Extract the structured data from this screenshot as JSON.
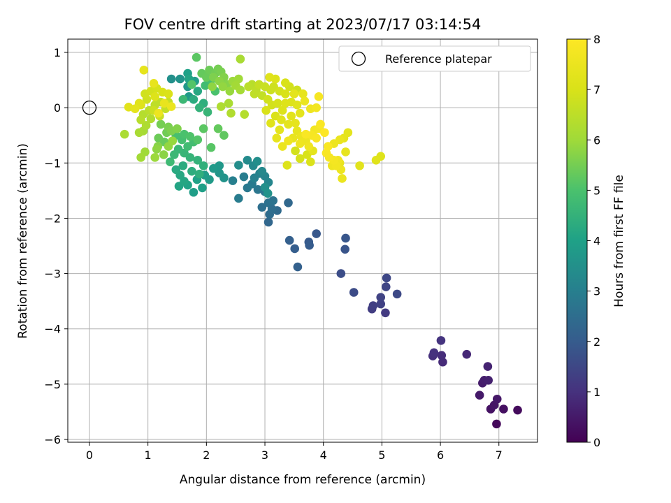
{
  "chart_data": {
    "type": "scatter",
    "title": "FOV centre drift starting at 2023/07/17 03:14:54",
    "xlabel": "Angular distance from reference (arcmin)",
    "ylabel": "Rotation from reference (arcmin)",
    "xlim": [
      -0.37,
      7.66
    ],
    "ylim": [
      -6.05,
      1.24
    ],
    "xticks": [
      0,
      1,
      2,
      3,
      4,
      5,
      6,
      7
    ],
    "yticks": [
      1,
      0,
      -1,
      -2,
      -3,
      -4,
      -5,
      -6
    ],
    "grid": true,
    "legend": {
      "placement": "top-right",
      "entries": [
        "Reference platepar"
      ]
    },
    "reference_point": {
      "x": 0,
      "y": 0,
      "label": "Reference platepar"
    },
    "colorbar": {
      "label": "Hours from first FF file",
      "range": [
        0,
        8
      ],
      "ticks": [
        0,
        1,
        2,
        3,
        4,
        5,
        6,
        7,
        8
      ],
      "colormap": "viridis"
    },
    "points": [
      [
        6.96,
        -5.72,
        0.15
      ],
      [
        7.32,
        -5.47,
        0.2
      ],
      [
        7.08,
        -5.45,
        0.3
      ],
      [
        6.86,
        -5.45,
        0.35
      ],
      [
        6.92,
        -5.38,
        0.4
      ],
      [
        6.97,
        -5.27,
        0.45
      ],
      [
        6.67,
        -5.2,
        0.5
      ],
      [
        6.72,
        -4.98,
        0.55
      ],
      [
        6.75,
        -4.93,
        0.6
      ],
      [
        6.82,
        -4.93,
        0.65
      ],
      [
        6.81,
        -4.68,
        0.7
      ],
      [
        6.45,
        -4.46,
        0.8
      ],
      [
        6.04,
        -4.6,
        0.85
      ],
      [
        6.02,
        -4.48,
        0.9
      ],
      [
        5.87,
        -4.49,
        0.95
      ],
      [
        5.89,
        -4.43,
        1.0
      ],
      [
        6.01,
        -4.21,
        1.05
      ],
      [
        5.06,
        -3.71,
        1.2
      ],
      [
        4.83,
        -3.64,
        1.25
      ],
      [
        4.85,
        -3.58,
        1.3
      ],
      [
        4.98,
        -3.55,
        1.35
      ],
      [
        4.98,
        -3.43,
        1.4
      ],
      [
        5.07,
        -3.24,
        1.45
      ],
      [
        5.08,
        -3.08,
        1.5
      ],
      [
        5.26,
        -3.37,
        1.55
      ],
      [
        4.52,
        -3.34,
        1.6
      ],
      [
        4.3,
        -3.0,
        1.65
      ],
      [
        4.37,
        -2.56,
        1.8
      ],
      [
        4.38,
        -2.36,
        1.85
      ],
      [
        3.88,
        -2.28,
        1.9
      ],
      [
        3.75,
        -2.43,
        1.95
      ],
      [
        3.76,
        -2.49,
        2.0
      ],
      [
        3.51,
        -2.55,
        2.05
      ],
      [
        3.42,
        -2.4,
        2.1
      ],
      [
        3.56,
        -2.88,
        2.15
      ],
      [
        3.06,
        -2.07,
        2.3
      ],
      [
        3.4,
        -1.72,
        2.35
      ],
      [
        3.21,
        -1.86,
        2.4
      ],
      [
        3.08,
        -1.93,
        2.45
      ],
      [
        3.12,
        -1.83,
        2.5
      ],
      [
        2.95,
        -1.8,
        2.55
      ],
      [
        3.06,
        -1.72,
        2.6
      ],
      [
        3.14,
        -1.68,
        2.65
      ],
      [
        3.0,
        -1.52,
        2.7
      ],
      [
        2.88,
        -1.48,
        2.75
      ],
      [
        2.7,
        -1.45,
        2.8
      ],
      [
        2.78,
        -1.38,
        2.85
      ],
      [
        2.55,
        -1.64,
        2.9
      ],
      [
        2.64,
        -1.25,
        2.95
      ],
      [
        2.45,
        -1.32,
        3.0
      ],
      [
        2.82,
        -1.27,
        3.05
      ],
      [
        2.91,
        -1.19,
        3.1
      ],
      [
        3.0,
        -1.24,
        3.15
      ],
      [
        3.06,
        -1.35,
        3.2
      ],
      [
        2.95,
        -1.15,
        3.25
      ],
      [
        2.8,
        -1.05,
        3.3
      ],
      [
        2.7,
        -0.95,
        3.35
      ],
      [
        2.55,
        -1.04,
        3.4
      ],
      [
        2.87,
        -0.97,
        3.45
      ],
      [
        3.0,
        -1.44,
        3.5
      ],
      [
        3.05,
        -1.55,
        3.55
      ],
      [
        2.3,
        -1.27,
        3.6
      ],
      [
        2.22,
        -1.18,
        3.65
      ],
      [
        2.22,
        -1.05,
        3.7
      ],
      [
        2.12,
        -1.1,
        3.75
      ],
      [
        2.05,
        -1.3,
        3.8
      ],
      [
        1.97,
        -1.22,
        3.85
      ],
      [
        1.78,
        -1.53,
        3.9
      ],
      [
        1.93,
        -1.45,
        3.95
      ],
      [
        1.84,
        -1.3,
        4.0
      ],
      [
        1.68,
        -1.4,
        4.05
      ],
      [
        1.53,
        -1.42,
        4.1
      ],
      [
        1.62,
        -1.33,
        4.15
      ],
      [
        1.55,
        -1.22,
        4.2
      ],
      [
        1.48,
        -1.12,
        4.25
      ],
      [
        1.6,
        -1.05,
        4.3
      ],
      [
        1.75,
        -1.15,
        4.35
      ],
      [
        1.88,
        -1.2,
        4.4
      ],
      [
        1.95,
        -1.05,
        4.45
      ],
      [
        1.85,
        -0.95,
        4.5
      ],
      [
        1.72,
        -0.9,
        4.55
      ],
      [
        1.62,
        -0.82,
        4.6
      ],
      [
        1.52,
        -0.75,
        4.65
      ],
      [
        1.45,
        -0.85,
        4.7
      ],
      [
        1.38,
        -0.98,
        4.75
      ],
      [
        1.68,
        -0.7,
        4.8
      ],
      [
        1.78,
        -0.62,
        4.85
      ],
      [
        1.58,
        -0.58,
        4.9
      ],
      [
        1.48,
        -0.5,
        4.95
      ],
      [
        1.62,
        -0.48,
        5.0
      ],
      [
        1.72,
        -0.52,
        5.05
      ],
      [
        1.85,
        -0.58,
        5.1
      ],
      [
        2.08,
        -0.72,
        5.15
      ],
      [
        1.95,
        -0.38,
        5.2
      ],
      [
        2.3,
        -0.5,
        5.25
      ],
      [
        2.2,
        -0.38,
        5.3
      ],
      [
        1.28,
        -0.62,
        5.35
      ],
      [
        1.18,
        -0.55,
        5.4
      ],
      [
        1.32,
        -0.45,
        5.45
      ],
      [
        1.22,
        -0.3,
        5.5
      ],
      [
        1.35,
        -0.35,
        5.55
      ],
      [
        1.4,
        -0.42,
        5.6
      ],
      [
        1.5,
        -0.38,
        5.65
      ],
      [
        1.17,
        -0.7,
        5.7
      ],
      [
        1.27,
        -0.85,
        5.75
      ],
      [
        1.15,
        -0.75,
        5.8
      ],
      [
        1.35,
        -0.7,
        5.85
      ],
      [
        1.42,
        -0.6,
        5.9
      ],
      [
        1.12,
        -0.9,
        5.95
      ],
      [
        0.95,
        -0.8,
        6.0
      ],
      [
        0.88,
        -0.9,
        6.05
      ],
      [
        0.92,
        -0.42,
        6.1
      ],
      [
        0.85,
        -0.45,
        6.15
      ],
      [
        0.6,
        -0.48,
        6.2
      ],
      [
        0.97,
        -0.32,
        6.25
      ],
      [
        1.05,
        -0.2,
        6.3
      ],
      [
        0.92,
        -0.12,
        6.35
      ],
      [
        0.88,
        -0.22,
        6.4
      ],
      [
        1.02,
        -0.05,
        6.45
      ],
      [
        1.12,
        0.05,
        6.5
      ],
      [
        1.22,
        0.1,
        6.55
      ],
      [
        1.3,
        -0.02,
        6.6
      ],
      [
        1.35,
        0.1,
        6.65
      ],
      [
        1.2,
        -0.15,
        6.7
      ],
      [
        1.1,
        -0.05,
        6.75
      ],
      [
        0.98,
        0.15,
        6.8
      ],
      [
        0.95,
        0.25,
        6.85
      ],
      [
        1.05,
        0.3,
        6.9
      ],
      [
        1.15,
        0.35,
        6.95
      ],
      [
        1.25,
        0.28,
        7.0
      ],
      [
        1.35,
        0.25,
        7.05
      ],
      [
        1.12,
        0.2,
        7.1
      ],
      [
        0.88,
        0.05,
        7.15
      ],
      [
        0.85,
        0.08,
        7.2
      ],
      [
        0.67,
        0.01,
        7.25
      ],
      [
        0.78,
        -0.02,
        7.3
      ],
      [
        0.93,
        0.68,
        7.35
      ],
      [
        1.1,
        0.44,
        7.4
      ],
      [
        1.28,
        0.08,
        7.45
      ],
      [
        1.4,
        0.02,
        7.5
      ],
      [
        1.18,
        -0.1,
        7.55
      ],
      [
        1.4,
        0.52,
        3.5
      ],
      [
        1.55,
        0.52,
        3.6
      ],
      [
        1.68,
        0.38,
        3.7
      ],
      [
        1.7,
        0.2,
        3.8
      ],
      [
        1.8,
        0.48,
        3.9
      ],
      [
        1.68,
        0.62,
        4.0
      ],
      [
        1.7,
        0.52,
        4.1
      ],
      [
        1.85,
        0.3,
        4.2
      ],
      [
        1.78,
        0.15,
        4.3
      ],
      [
        1.95,
        0.08,
        4.4
      ],
      [
        1.88,
        0.0,
        4.5
      ],
      [
        2.02,
        -0.08,
        4.6
      ],
      [
        1.6,
        0.15,
        4.7
      ],
      [
        1.98,
        0.4,
        4.8
      ],
      [
        2.08,
        0.5,
        4.9
      ],
      [
        2.15,
        0.3,
        5.0
      ],
      [
        1.75,
        0.42,
        5.1
      ],
      [
        1.83,
        0.91,
        5.2
      ],
      [
        1.92,
        0.62,
        5.3
      ],
      [
        2.0,
        0.55,
        5.35
      ],
      [
        2.05,
        0.68,
        5.4
      ],
      [
        2.15,
        0.62,
        5.45
      ],
      [
        2.2,
        0.7,
        5.5
      ],
      [
        2.25,
        0.65,
        5.55
      ],
      [
        2.12,
        0.55,
        5.6
      ],
      [
        2.3,
        0.55,
        5.65
      ],
      [
        2.35,
        0.42,
        5.7
      ],
      [
        2.22,
        0.48,
        5.75
      ],
      [
        2.1,
        0.38,
        5.8
      ],
      [
        2.28,
        0.38,
        5.85
      ],
      [
        2.4,
        0.3,
        5.9
      ],
      [
        2.45,
        0.48,
        5.95
      ],
      [
        2.55,
        0.52,
        6.0
      ],
      [
        2.5,
        0.4,
        6.05
      ],
      [
        2.58,
        0.32,
        6.1
      ],
      [
        2.58,
        0.88,
        6.15
      ],
      [
        2.38,
        0.08,
        6.2
      ],
      [
        2.25,
        0.02,
        6.25
      ],
      [
        2.42,
        -0.1,
        6.3
      ],
      [
        2.65,
        -0.12,
        6.35
      ],
      [
        2.78,
        0.42,
        6.4
      ],
      [
        2.72,
        0.38,
        6.45
      ],
      [
        2.85,
        0.32,
        6.5
      ],
      [
        2.82,
        0.25,
        6.55
      ],
      [
        2.95,
        0.22,
        6.6
      ],
      [
        2.9,
        0.42,
        6.65
      ],
      [
        3.0,
        0.38,
        6.7
      ],
      [
        3.1,
        0.32,
        6.75
      ],
      [
        3.15,
        0.38,
        6.8
      ],
      [
        3.05,
        0.15,
        6.85
      ],
      [
        3.12,
        0.05,
        6.9
      ],
      [
        3.22,
        0.08,
        6.95
      ],
      [
        3.02,
        -0.05,
        7.0
      ],
      [
        3.18,
        -0.15,
        7.05
      ],
      [
        3.3,
        -0.05,
        7.1
      ],
      [
        3.35,
        0.08,
        7.15
      ],
      [
        3.28,
        -0.22,
        7.2
      ],
      [
        3.45,
        -0.15,
        7.25
      ],
      [
        3.4,
        -0.3,
        7.3
      ],
      [
        3.52,
        -0.28,
        7.35
      ],
      [
        3.55,
        -0.42,
        7.4
      ],
      [
        3.48,
        -0.55,
        7.45
      ],
      [
        3.62,
        -0.52,
        7.5
      ],
      [
        3.7,
        -0.6,
        7.55
      ],
      [
        3.6,
        -0.65,
        7.6
      ],
      [
        3.75,
        -0.7,
        7.65
      ],
      [
        3.85,
        -0.4,
        7.7
      ],
      [
        3.92,
        -0.38,
        7.75
      ],
      [
        3.8,
        -0.5,
        7.8
      ],
      [
        3.88,
        -0.55,
        7.85
      ],
      [
        3.7,
        -0.48,
        7.9
      ],
      [
        3.4,
        -0.6,
        7.6
      ],
      [
        3.3,
        -0.7,
        7.5
      ],
      [
        3.2,
        -0.55,
        7.4
      ],
      [
        3.25,
        -0.4,
        7.3
      ],
      [
        3.1,
        -0.28,
        7.2
      ],
      [
        3.25,
        0.3,
        6.9
      ],
      [
        3.35,
        0.25,
        7.0
      ],
      [
        3.45,
        0.1,
        7.1
      ],
      [
        3.55,
        0.05,
        7.2
      ],
      [
        3.6,
        -0.1,
        7.3
      ],
      [
        3.55,
        0.32,
        6.8
      ],
      [
        3.42,
        0.38,
        6.9
      ],
      [
        3.35,
        0.45,
        7.0
      ],
      [
        3.18,
        0.52,
        7.1
      ],
      [
        3.08,
        0.55,
        7.2
      ],
      [
        3.5,
        0.25,
        7.3
      ],
      [
        3.65,
        0.25,
        7.4
      ],
      [
        3.68,
        0.12,
        7.5
      ],
      [
        3.78,
        -0.02,
        7.6
      ],
      [
        3.88,
        0.0,
        7.7
      ],
      [
        3.92,
        0.2,
        7.8
      ],
      [
        3.95,
        -0.3,
        7.9
      ],
      [
        4.02,
        -0.45,
        8.0
      ],
      [
        4.08,
        -0.7,
        7.9
      ],
      [
        4.05,
        -0.82,
        7.85
      ],
      [
        4.1,
        -0.9,
        7.8
      ],
      [
        4.18,
        -0.95,
        7.75
      ],
      [
        4.22,
        -1.05,
        7.7
      ],
      [
        4.25,
        -0.95,
        7.65
      ],
      [
        4.15,
        -1.05,
        7.6
      ],
      [
        4.3,
        -1.12,
        7.55
      ],
      [
        4.32,
        -1.28,
        7.5
      ],
      [
        4.28,
        -1.0,
        7.45
      ],
      [
        4.38,
        -0.8,
        7.4
      ],
      [
        4.35,
        -0.55,
        7.35
      ],
      [
        4.42,
        -0.45,
        7.3
      ],
      [
        4.62,
        -1.05,
        7.25
      ],
      [
        4.9,
        -0.95,
        7.2
      ],
      [
        4.98,
        -0.88,
        7.15
      ],
      [
        3.38,
        -1.04,
        7.1
      ],
      [
        3.78,
        -0.98,
        7.05
      ],
      [
        3.72,
        -0.85,
        7.0
      ],
      [
        3.6,
        -0.92,
        6.95
      ],
      [
        3.52,
        -0.78,
        6.9
      ],
      [
        3.82,
        -0.78,
        7.3
      ],
      [
        4.28,
        -0.58,
        7.5
      ],
      [
        4.18,
        -0.65,
        7.55
      ]
    ]
  }
}
